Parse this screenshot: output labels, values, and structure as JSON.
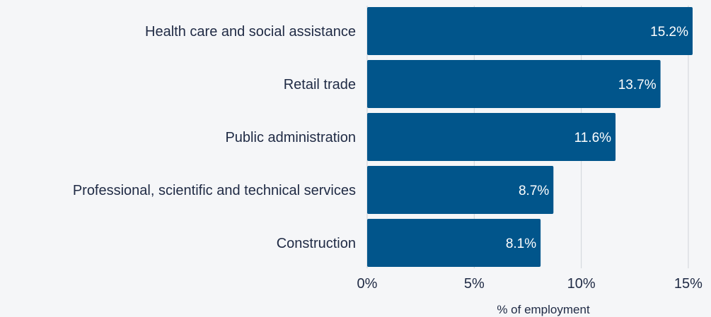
{
  "chart_data": {
    "type": "bar",
    "orientation": "horizontal",
    "categories": [
      "Health care and social assistance",
      "Retail trade",
      "Public administration",
      "Professional, scientific and technical services",
      "Construction"
    ],
    "values": [
      15.2,
      13.7,
      11.6,
      8.7,
      8.1
    ],
    "value_labels": [
      "15.2%",
      "13.7%",
      "11.6%",
      "8.7%",
      "8.1%"
    ],
    "xlabel": "% of employment",
    "ylabel": "",
    "xlim": [
      0,
      15.2
    ],
    "x_ticks": [
      0,
      5,
      10,
      15
    ],
    "x_tick_labels": [
      "0%",
      "5%",
      "10%",
      "15%"
    ],
    "grid": "vertical",
    "bar_color": "#01558b"
  }
}
